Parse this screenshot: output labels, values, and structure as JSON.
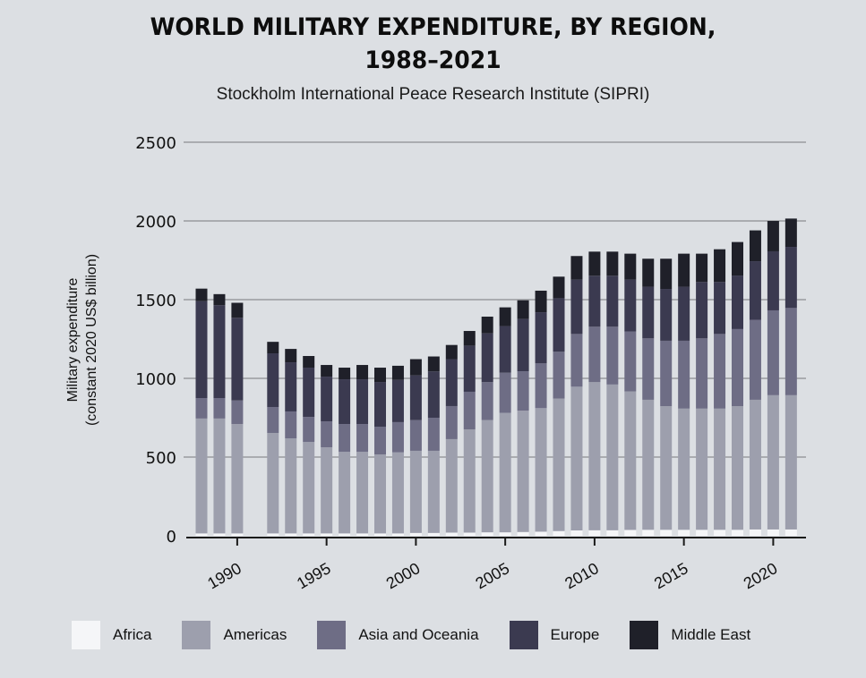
{
  "header": {
    "title_line1": "WORLD MILITARY EXPENDITURE, BY REGION,",
    "title_line2": "1988–2021",
    "subtitle": "Stockholm International Peace Research Institute (SIPRI)"
  },
  "colors": {
    "background": "#dcdfe3",
    "gridline": "#9a9ca0",
    "axis": "#1a1a1a"
  },
  "chart_data": {
    "type": "bar",
    "stacked": true,
    "title": "WORLD MILITARY EXPENDITURE, BY REGION, 1988–2021",
    "subtitle": "Stockholm International Peace Research Institute (SIPRI)",
    "xlabel": "",
    "ylabel": "Military expenditure\n(constant 2020 US$ billion)",
    "ylabel_lines": [
      "Military expenditure",
      "(constant 2020 US$ billion)"
    ],
    "ylim": [
      0,
      2500
    ],
    "yticks": [
      0,
      500,
      1000,
      1500,
      2000,
      2500
    ],
    "xlim": [
      1988,
      2021
    ],
    "xticks": [
      1990,
      1995,
      2000,
      2005,
      2010,
      2015,
      2020
    ],
    "grid": true,
    "legend_position": "bottom",
    "categories": [
      1988,
      1989,
      1990,
      1992,
      1993,
      1994,
      1995,
      1996,
      1997,
      1998,
      1999,
      2000,
      2001,
      2002,
      2003,
      2004,
      2005,
      2006,
      2007,
      2008,
      2009,
      2010,
      2011,
      2012,
      2013,
      2014,
      2015,
      2016,
      2017,
      2018,
      2019,
      2020,
      2021
    ],
    "series": [
      {
        "name": "Africa",
        "color": "#f5f6f8",
        "values": [
          15,
          15,
          15,
          15,
          15,
          15,
          15,
          15,
          15,
          15,
          15,
          18,
          18,
          20,
          20,
          22,
          22,
          24,
          26,
          30,
          34,
          35,
          35,
          37,
          38,
          38,
          38,
          38,
          38,
          38,
          40,
          40,
          40
        ]
      },
      {
        "name": "Americas",
        "color": "#9d9fad",
        "values": [
          730,
          730,
          695,
          638,
          604,
          581,
          547,
          519,
          519,
          502,
          515,
          522,
          522,
          594,
          656,
          713,
          759,
          771,
          785,
          842,
          913,
          941,
          926,
          880,
          826,
          785,
          770,
          770,
          770,
          785,
          824,
          853,
          853
        ]
      },
      {
        "name": "Asia and Oceania",
        "color": "#6e6d85",
        "values": [
          130,
          130,
          150,
          165,
          171,
          159,
          165,
          176,
          176,
          176,
          192,
          195,
          210,
          210,
          239,
          241,
          255,
          250,
          284,
          297,
          335,
          352,
          367,
          381,
          390,
          416,
          431,
          446,
          474,
          490,
          508,
          539,
          554
        ]
      },
      {
        "name": "Europe",
        "color": "#3b3a50",
        "values": [
          615,
          590,
          525,
          341,
          312,
          313,
          284,
          284,
          284,
          284,
          268,
          284,
          294,
          298,
          293,
          310,
          296,
          332,
          325,
          340,
          345,
          324,
          324,
          329,
          328,
          329,
          343,
          358,
          330,
          340,
          372,
          375,
          388
        ]
      },
      {
        "name": "Middle East",
        "color": "#1f2029",
        "values": [
          80,
          70,
          95,
          73,
          85,
          74,
          74,
          74,
          91,
          91,
          90,
          103,
          95,
          90,
          93,
          106,
          119,
          119,
          137,
          137,
          150,
          153,
          153,
          165,
          178,
          192,
          210,
          180,
          208,
          213,
          196,
          193,
          180
        ]
      }
    ]
  },
  "legend": {
    "items": [
      {
        "label": "Africa",
        "color": "#f5f6f8"
      },
      {
        "label": "Americas",
        "color": "#9d9fad"
      },
      {
        "label": "Asia and Oceania",
        "color": "#6e6d85"
      },
      {
        "label": "Europe",
        "color": "#3b3a50"
      },
      {
        "label": "Middle East",
        "color": "#1f2029"
      }
    ]
  }
}
